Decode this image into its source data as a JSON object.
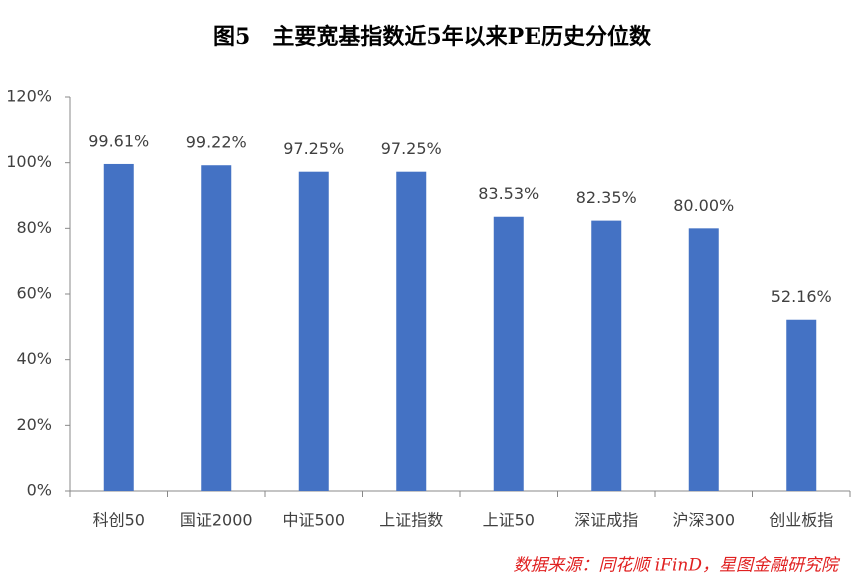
{
  "chart_data": {
    "type": "bar",
    "title": "图5　主要宽基指数近5年以来PE历史分位数",
    "categories": [
      "科创50",
      "国证2000",
      "中证500",
      "上证指数",
      "上证50",
      "深证成指",
      "沪深300",
      "创业板指"
    ],
    "values": [
      99.61,
      99.22,
      97.25,
      97.25,
      83.53,
      82.35,
      80.0,
      52.16
    ],
    "value_labels": [
      "99.61%",
      "99.22%",
      "97.25%",
      "97.25%",
      "83.53%",
      "82.35%",
      "80.00%",
      "52.16%"
    ],
    "color": "#4472c4",
    "ylim": [
      0,
      120
    ],
    "yticks": [
      {
        "value": 0,
        "label": "0%"
      },
      {
        "value": 20,
        "label": "20%"
      },
      {
        "value": 40,
        "label": "40%"
      },
      {
        "value": 60,
        "label": "60%"
      },
      {
        "value": 80,
        "label": "80%"
      },
      {
        "value": 100,
        "label": "100%"
      },
      {
        "value": 120,
        "label": "120%"
      }
    ],
    "grid": false,
    "source": "数据来源：同花顺 iFinD，星图金融研究院"
  }
}
